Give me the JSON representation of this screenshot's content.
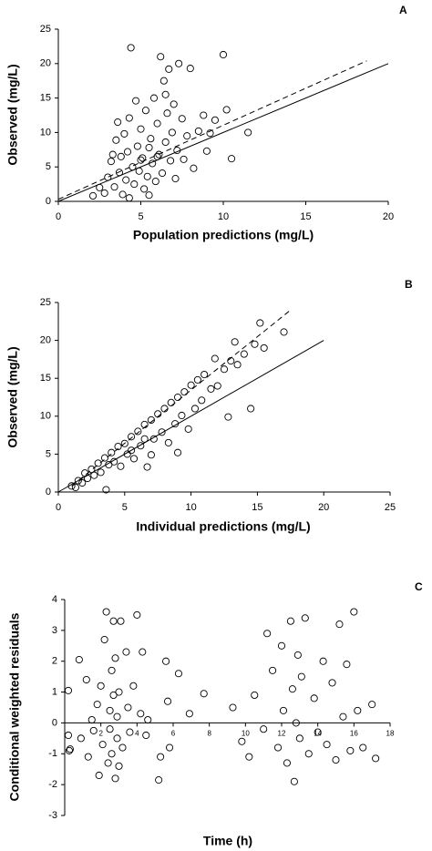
{
  "chart_data": [
    {
      "type": "scatter",
      "label": "A",
      "x_label": "Population predictions (mg/L)",
      "y_label": "Observed (mg/L)",
      "xlim": [
        0,
        20
      ],
      "ylim": [
        0,
        25
      ],
      "xticks": [
        0,
        5,
        10,
        15,
        20
      ],
      "yticks": [
        0,
        5,
        10,
        15,
        20,
        25
      ],
      "color": "#000000",
      "x": [
        2.1,
        2.5,
        2.8,
        3.0,
        3.2,
        3.4,
        3.5,
        3.6,
        3.7,
        3.8,
        3.9,
        4.0,
        4.1,
        4.2,
        4.3,
        4.4,
        4.5,
        4.6,
        4.7,
        4.8,
        4.9,
        5.0,
        5.1,
        5.2,
        5.3,
        5.4,
        5.5,
        5.6,
        5.7,
        5.8,
        5.9,
        6.0,
        6.1,
        6.2,
        6.3,
        6.4,
        6.5,
        6.6,
        6.7,
        6.8,
        6.9,
        7.0,
        7.1,
        7.2,
        7.3,
        7.5,
        7.6,
        7.8,
        8.0,
        8.2,
        8.5,
        8.8,
        9.0,
        9.2,
        9.5,
        10.0,
        10.2,
        10.5,
        11.5,
        5.5,
        4.3,
        6.5,
        5.0,
        6.0,
        3.3
      ],
      "values": [
        0.8,
        2.0,
        1.2,
        3.5,
        5.8,
        2.1,
        8.9,
        11.5,
        4.2,
        6.5,
        1.0,
        9.8,
        3.1,
        7.2,
        12.1,
        22.3,
        5.0,
        2.5,
        14.6,
        8.0,
        4.4,
        10.5,
        6.3,
        1.8,
        13.2,
        3.6,
        7.8,
        9.1,
        5.5,
        15.0,
        2.9,
        11.3,
        6.8,
        21.0,
        4.1,
        17.5,
        8.6,
        12.8,
        19.2,
        5.9,
        10.0,
        14.1,
        3.3,
        7.4,
        20.0,
        12.0,
        6.1,
        9.5,
        19.3,
        4.8,
        10.2,
        12.5,
        7.3,
        9.9,
        11.8,
        21.3,
        13.3,
        6.2,
        10.0,
        0.9,
        0.5,
        15.5,
        6.0,
        6.5,
        6.8
      ],
      "lines": [
        {
          "style": "solid",
          "x": [
            0,
            20
          ],
          "values": [
            0,
            20
          ]
        },
        {
          "style": "dashed",
          "x": [
            0,
            18.7
          ],
          "values": [
            0.3,
            20.4
          ]
        }
      ]
    },
    {
      "type": "scatter",
      "label": "B",
      "x_label": "Individual predictions (mg/L)",
      "y_label": "Observed (mg/L)",
      "xlim": [
        0,
        25
      ],
      "ylim": [
        0,
        25
      ],
      "xticks": [
        0,
        5,
        10,
        15,
        20,
        25
      ],
      "yticks": [
        0,
        5,
        10,
        15,
        20,
        25
      ],
      "color": "#000000",
      "x": [
        1.0,
        1.3,
        1.5,
        1.8,
        2.0,
        2.2,
        2.5,
        2.7,
        3.0,
        3.2,
        3.5,
        3.6,
        3.8,
        4.0,
        4.2,
        4.5,
        4.7,
        5.0,
        5.2,
        5.5,
        5.7,
        6.0,
        6.2,
        6.5,
        6.7,
        7.0,
        7.2,
        7.5,
        7.8,
        8.0,
        8.3,
        8.5,
        8.8,
        9.0,
        9.3,
        9.5,
        9.8,
        10.0,
        10.3,
        10.5,
        10.8,
        11.0,
        11.5,
        11.8,
        12.0,
        12.5,
        12.8,
        13.0,
        13.5,
        14.0,
        14.5,
        14.8,
        15.2,
        15.5,
        17.0,
        13.3,
        9.0,
        7.0,
        5.5,
        6.5
      ],
      "values": [
        0.8,
        0.6,
        1.5,
        1.2,
        2.5,
        1.8,
        3.0,
        2.2,
        3.8,
        2.6,
        4.5,
        0.3,
        3.6,
        5.2,
        4.0,
        6.0,
        3.4,
        6.4,
        5.0,
        7.3,
        4.4,
        8.0,
        6.1,
        8.9,
        3.3,
        9.5,
        7.0,
        10.3,
        7.9,
        11.0,
        6.5,
        11.8,
        9.0,
        12.5,
        10.1,
        13.2,
        8.3,
        14.1,
        11.0,
        14.8,
        12.1,
        15.5,
        13.6,
        17.6,
        14.0,
        16.2,
        9.9,
        17.3,
        16.8,
        18.2,
        11.0,
        19.5,
        22.3,
        19.0,
        21.1,
        19.8,
        5.2,
        4.9,
        5.5,
        7.0
      ],
      "lines": [
        {
          "style": "solid",
          "x": [
            0,
            20
          ],
          "values": [
            0,
            20
          ]
        },
        {
          "style": "dashed",
          "x": [
            1,
            17.5
          ],
          "values": [
            0.8,
            24
          ]
        }
      ]
    },
    {
      "type": "scatter",
      "label": "C",
      "x_label": "Time (h)",
      "y_label": "Conditional weighted residuals",
      "xlim": [
        0,
        18
      ],
      "ylim": [
        -3,
        4
      ],
      "xticks": [
        2,
        4,
        6,
        8,
        10,
        12,
        14,
        16,
        18
      ],
      "yticks": [
        -3,
        -2,
        -1,
        0,
        1,
        2,
        3,
        4
      ],
      "color": "#000000",
      "x": [
        0.2,
        0.2,
        0.25,
        0.3,
        0.8,
        0.9,
        1.2,
        1.3,
        1.5,
        1.6,
        1.8,
        1.9,
        2.0,
        2.1,
        2.2,
        2.3,
        2.4,
        2.5,
        2.5,
        2.6,
        2.6,
        2.7,
        2.7,
        2.8,
        2.8,
        2.9,
        2.9,
        3.0,
        3.0,
        3.1,
        3.2,
        3.4,
        3.5,
        3.6,
        3.8,
        4.0,
        4.2,
        4.3,
        4.5,
        4.6,
        5.2,
        5.3,
        5.6,
        5.7,
        5.8,
        6.3,
        6.9,
        7.7,
        9.3,
        9.8,
        10.2,
        10.5,
        11.0,
        11.2,
        11.5,
        11.8,
        12.0,
        12.1,
        12.3,
        12.5,
        12.6,
        12.7,
        12.8,
        12.9,
        13.0,
        13.1,
        13.3,
        13.5,
        13.8,
        14.0,
        14.3,
        14.5,
        14.8,
        15.0,
        15.2,
        15.4,
        15.6,
        15.8,
        16.0,
        16.2,
        16.5,
        17.0,
        17.2
      ],
      "values": [
        1.05,
        -0.4,
        -0.9,
        -0.85,
        2.05,
        -0.5,
        1.4,
        -1.1,
        0.1,
        -0.25,
        0.6,
        -1.7,
        1.2,
        -0.7,
        2.7,
        3.6,
        -1.3,
        0.4,
        -0.2,
        1.7,
        -1.0,
        3.3,
        0.9,
        -1.8,
        2.1,
        -0.5,
        0.2,
        1.0,
        -1.4,
        3.3,
        -0.8,
        2.3,
        0.5,
        -0.3,
        1.2,
        3.5,
        0.3,
        2.3,
        -0.4,
        0.1,
        -1.85,
        -1.1,
        2.0,
        0.7,
        -0.8,
        1.6,
        0.3,
        0.95,
        0.5,
        -0.6,
        -1.1,
        0.9,
        -0.2,
        2.9,
        1.7,
        -0.8,
        2.5,
        0.4,
        -1.3,
        3.3,
        1.1,
        -1.9,
        0.0,
        2.2,
        -0.5,
        1.5,
        3.4,
        -1.0,
        0.8,
        -0.3,
        2.0,
        -0.7,
        1.3,
        -1.2,
        3.2,
        0.2,
        1.9,
        -0.9,
        3.6,
        0.4,
        -0.8,
        0.6,
        -1.15
      ],
      "lines": [
        {
          "style": "solid",
          "x": [
            0,
            18
          ],
          "values": [
            0,
            0
          ]
        }
      ]
    }
  ]
}
